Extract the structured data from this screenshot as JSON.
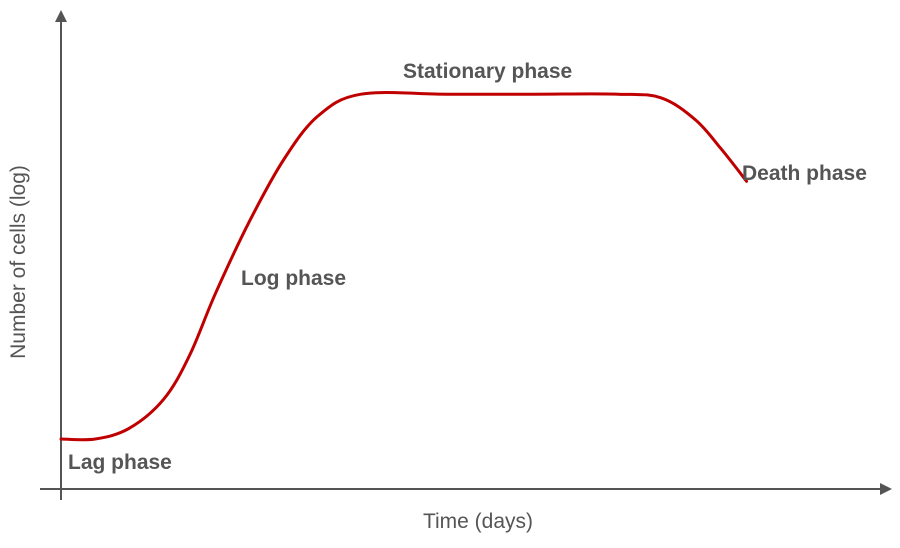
{
  "chart_data": {
    "type": "line",
    "title": "",
    "xlabel": "Time (days)",
    "ylabel": "Number of cells (log)",
    "colors": {
      "curve": "#c00000",
      "axis": "#555555",
      "text": "#555555"
    },
    "grid": false,
    "series": [
      {
        "points": [
          [
            0.0,
            0.0
          ],
          [
            0.04,
            0.0
          ],
          [
            0.08,
            0.03
          ],
          [
            0.12,
            0.11
          ],
          [
            0.15,
            0.23
          ],
          [
            0.18,
            0.4
          ],
          [
            0.22,
            0.6
          ],
          [
            0.26,
            0.77
          ],
          [
            0.3,
            0.89
          ],
          [
            0.35,
            0.95
          ],
          [
            0.45,
            0.95
          ],
          [
            0.55,
            0.95
          ],
          [
            0.65,
            0.95
          ],
          [
            0.7,
            0.94
          ],
          [
            0.74,
            0.88
          ],
          [
            0.77,
            0.8
          ],
          [
            0.8,
            0.71
          ]
        ]
      }
    ],
    "annotations": [
      {
        "key": "lag",
        "text": "Lag phase"
      },
      {
        "key": "log",
        "text": "Log phase"
      },
      {
        "key": "stationary",
        "text": "Stationary phase"
      },
      {
        "key": "death",
        "text": "Death phase"
      }
    ]
  }
}
